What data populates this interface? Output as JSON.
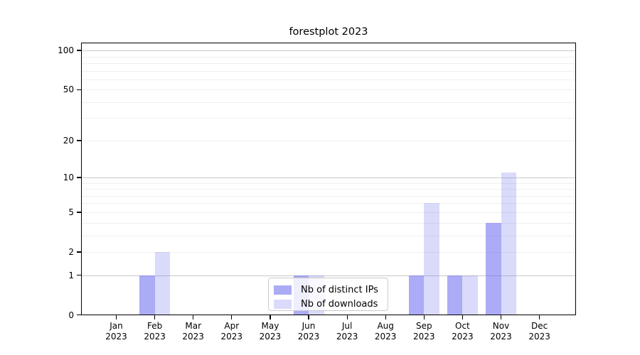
{
  "figure": {
    "background": "#ffffff"
  },
  "chart_data": {
    "type": "bar",
    "title": "forestplot 2023",
    "categories": [
      "Jan 2023",
      "Feb 2023",
      "Mar 2023",
      "Apr 2023",
      "May 2023",
      "Jun 2023",
      "Jul 2023",
      "Aug 2023",
      "Sep 2023",
      "Oct 2023",
      "Nov 2023",
      "Dec 2023"
    ],
    "series": [
      {
        "name": "Nb of distinct IPs",
        "color": "rgba(102,102,238,0.55)",
        "values": [
          0,
          1,
          0,
          0,
          0,
          1,
          0,
          0,
          1,
          1,
          4,
          0
        ]
      },
      {
        "name": "Nb of downloads",
        "color": "rgba(102,102,238,0.24)",
        "values": [
          0,
          2,
          0,
          0,
          0,
          1,
          0,
          0,
          6,
          1,
          11,
          0
        ]
      }
    ],
    "xlabel": "",
    "ylabel": "",
    "yscale": "log1p",
    "ylim": [
      0,
      115
    ],
    "yticks": [
      0,
      1,
      2,
      5,
      10,
      20,
      50,
      100
    ],
    "grid": {
      "major_lines": [
        1,
        10,
        100
      ],
      "minor_lines": [
        2,
        3,
        4,
        5,
        6,
        7,
        8,
        9,
        20,
        30,
        40,
        50,
        60,
        70,
        80,
        90
      ],
      "major_color": "#c8c8c8",
      "minor_color": "#efefef"
    },
    "legend": {
      "position": "lower center",
      "labels": [
        "Nb of distinct IPs",
        "Nb of downloads"
      ]
    }
  }
}
